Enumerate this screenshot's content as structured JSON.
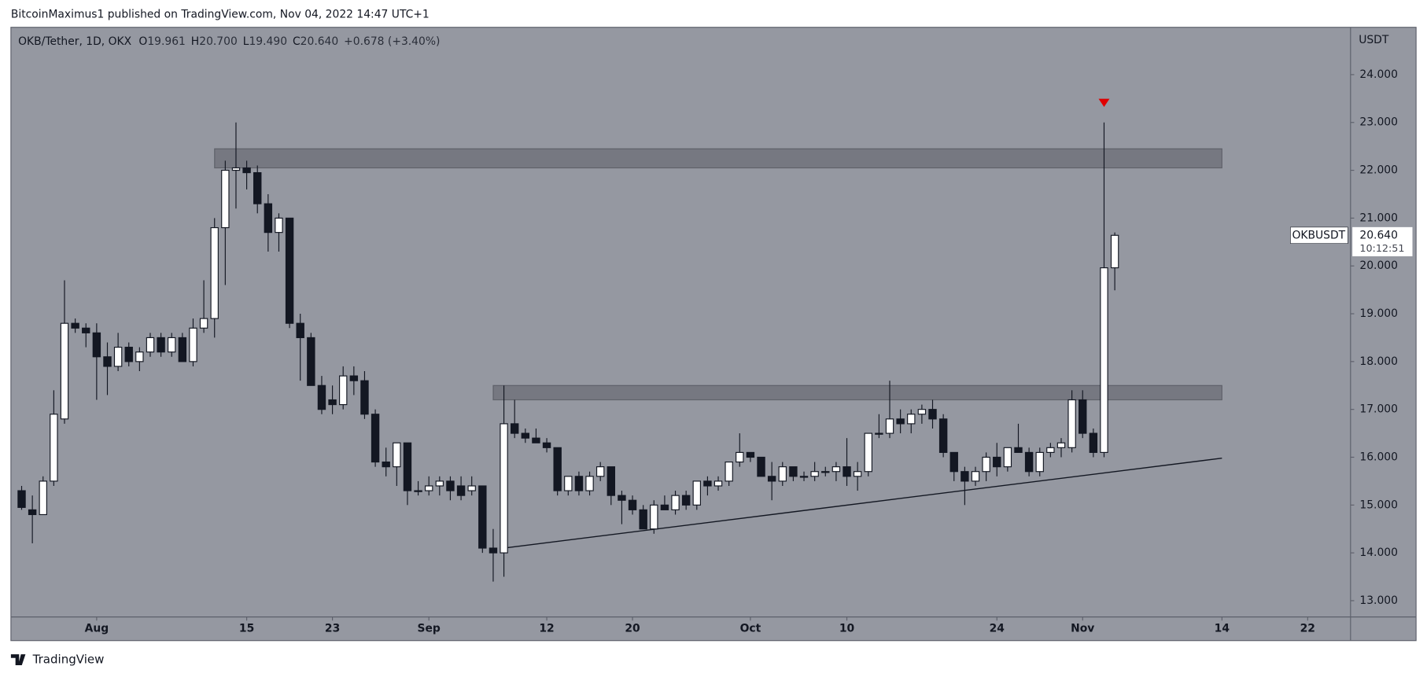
{
  "publisher": "BitcoinMaximus1 published on TradingView.com, Nov 04, 2022 14:47 UTC+1",
  "footer": "TradingView",
  "chart_data": {
    "type": "candlestick",
    "title": "OKB/Tether, 1D, OKX",
    "header_values": [
      {
        "key": "O",
        "text": "19.961"
      },
      {
        "key": "H",
        "text": "20.700"
      },
      {
        "key": "L",
        "text": "19.490"
      },
      {
        "key": "C",
        "text": "20.640"
      }
    ],
    "change": "+0.678 (+3.40%)",
    "y_unit": "USDT",
    "symbol": "OKBUSDT",
    "last_price": {
      "value": 20.64,
      "label": "20.640"
    },
    "countdown": "10:12:51",
    "x": [
      "Jul 25",
      "Jul 26",
      "Jul 27",
      "Jul 28",
      "Jul 29",
      "Jul 30",
      "Jul 31",
      "Aug 1",
      "Aug 2",
      "Aug 3",
      "Aug 4",
      "Aug 5",
      "Aug 6",
      "Aug 7",
      "Aug 8",
      "Aug 9",
      "Aug 10",
      "Aug 11",
      "Aug 12",
      "Aug 13",
      "Aug 14",
      "Aug 15",
      "Aug 16",
      "Aug 17",
      "Aug 18",
      "Aug 19",
      "Aug 20",
      "Aug 21",
      "Aug 22",
      "Aug 23",
      "Aug 24",
      "Aug 25",
      "Aug 26",
      "Aug 27",
      "Aug 28",
      "Aug 29",
      "Aug 30",
      "Aug 31",
      "Sep 1",
      "Sep 2",
      "Sep 3",
      "Sep 4",
      "Sep 5",
      "Sep 6",
      "Sep 7",
      "Sep 8",
      "Sep 9",
      "Sep 10",
      "Sep 11",
      "Sep 12",
      "Sep 13",
      "Sep 14",
      "Sep 15",
      "Sep 16",
      "Sep 17",
      "Sep 18",
      "Sep 19",
      "Sep 20",
      "Sep 21",
      "Sep 22",
      "Sep 23",
      "Sep 24",
      "Sep 25",
      "Sep 26",
      "Sep 27",
      "Sep 28",
      "Sep 29",
      "Sep 30",
      "Oct 1",
      "Oct 2",
      "Oct 3",
      "Oct 4",
      "Oct 5",
      "Oct 6",
      "Oct 7",
      "Oct 8",
      "Oct 9",
      "Oct 10",
      "Oct 11",
      "Oct 12",
      "Oct 13",
      "Oct 14",
      "Oct 15",
      "Oct 16",
      "Oct 17",
      "Oct 18",
      "Oct 19",
      "Oct 20",
      "Oct 21",
      "Oct 22",
      "Oct 23",
      "Oct 24",
      "Oct 25",
      "Oct 26",
      "Oct 27",
      "Oct 28",
      "Oct 29",
      "Oct 30",
      "Oct 31",
      "Nov 1",
      "Nov 2",
      "Nov 3",
      "Nov 4"
    ],
    "open": [
      15.3,
      14.9,
      14.8,
      15.5,
      16.8,
      18.8,
      18.7,
      18.6,
      18.1,
      17.9,
      18.3,
      18.0,
      18.2,
      18.5,
      18.2,
      18.5,
      18.0,
      18.7,
      18.9,
      20.8,
      22.0,
      22.05,
      21.95,
      21.3,
      20.7,
      21.0,
      18.8,
      18.5,
      17.5,
      17.2,
      17.1,
      17.7,
      17.6,
      16.9,
      15.9,
      15.8,
      16.3,
      15.3,
      15.3,
      15.4,
      15.5,
      15.4,
      15.3,
      15.4,
      14.1,
      14.0,
      16.7,
      16.5,
      16.4,
      16.3,
      16.2,
      15.3,
      15.6,
      15.3,
      15.6,
      15.8,
      15.2,
      15.1,
      14.9,
      14.5,
      15.0,
      14.9,
      15.2,
      15.0,
      15.5,
      15.4,
      15.5,
      15.9,
      16.1,
      16.0,
      15.6,
      15.5,
      15.8,
      15.6,
      15.6,
      15.7,
      15.7,
      15.8,
      15.6,
      15.7,
      16.5,
      16.5,
      16.8,
      16.7,
      16.9,
      17.0,
      16.8,
      16.1,
      15.7,
      15.5,
      15.7,
      16.0,
      15.8,
      16.2,
      16.1,
      15.7,
      16.1,
      16.2,
      16.2,
      17.2,
      16.5,
      16.1,
      19.961
    ],
    "high": [
      15.4,
      15.2,
      15.6,
      17.4,
      19.7,
      18.9,
      18.8,
      18.8,
      18.4,
      18.6,
      18.4,
      18.3,
      18.6,
      18.6,
      18.6,
      18.6,
      18.9,
      19.7,
      21.0,
      22.2,
      23.0,
      22.2,
      22.1,
      21.5,
      21.1,
      21.0,
      19.0,
      18.6,
      17.7,
      17.5,
      17.9,
      17.9,
      17.8,
      17.0,
      16.2,
      16.3,
      16.3,
      15.5,
      15.6,
      15.6,
      15.6,
      15.6,
      15.6,
      15.4,
      14.5,
      17.5,
      17.2,
      16.6,
      16.6,
      16.4,
      16.2,
      15.6,
      15.7,
      15.7,
      15.9,
      15.8,
      15.3,
      15.2,
      15.0,
      15.1,
      15.2,
      15.3,
      15.3,
      15.5,
      15.6,
      15.6,
      15.9,
      16.5,
      16.1,
      16.0,
      15.9,
      15.9,
      15.8,
      15.7,
      15.9,
      15.8,
      15.9,
      16.4,
      15.9,
      16.5,
      16.9,
      17.6,
      17.0,
      17.0,
      17.1,
      17.2,
      16.9,
      16.1,
      15.8,
      15.8,
      16.1,
      16.3,
      16.2,
      16.7,
      16.2,
      16.2,
      16.3,
      16.4,
      17.4,
      17.4,
      16.6,
      23.0,
      20.7
    ],
    "low": [
      14.9,
      14.2,
      14.8,
      15.4,
      16.7,
      18.6,
      18.3,
      17.2,
      17.3,
      17.8,
      17.9,
      17.8,
      18.1,
      18.1,
      18.1,
      18.0,
      17.9,
      18.6,
      18.5,
      19.6,
      21.2,
      21.6,
      21.1,
      20.3,
      20.3,
      18.7,
      17.6,
      17.5,
      16.9,
      16.9,
      17.0,
      17.3,
      16.8,
      15.8,
      15.6,
      15.4,
      15.0,
      15.2,
      15.2,
      15.2,
      15.1,
      15.1,
      15.2,
      14.0,
      13.4,
      13.5,
      16.4,
      16.3,
      16.3,
      16.1,
      15.2,
      15.2,
      15.2,
      15.2,
      15.5,
      15.0,
      14.6,
      14.8,
      14.5,
      14.4,
      14.9,
      14.8,
      14.9,
      14.9,
      15.2,
      15.3,
      15.4,
      15.8,
      15.9,
      15.6,
      15.1,
      15.4,
      15.5,
      15.5,
      15.5,
      15.6,
      15.5,
      15.4,
      15.3,
      15.6,
      16.4,
      16.4,
      16.5,
      16.5,
      16.7,
      16.6,
      16.0,
      15.5,
      15.0,
      15.4,
      15.5,
      15.6,
      15.7,
      16.1,
      15.6,
      15.6,
      16.0,
      16.0,
      16.1,
      16.4,
      16.0,
      16.0,
      19.49
    ],
    "close": [
      14.95,
      14.8,
      15.5,
      16.9,
      18.8,
      18.7,
      18.6,
      18.1,
      17.9,
      18.3,
      18.0,
      18.2,
      18.5,
      18.2,
      18.5,
      18.0,
      18.7,
      18.9,
      20.8,
      22.0,
      22.05,
      21.95,
      21.3,
      20.7,
      21.0,
      18.8,
      18.5,
      17.5,
      17.0,
      17.1,
      17.7,
      17.6,
      16.9,
      15.9,
      15.8,
      16.3,
      15.3,
      15.3,
      15.4,
      15.5,
      15.3,
      15.2,
      15.4,
      14.1,
      14.0,
      16.7,
      16.5,
      16.4,
      16.3,
      16.2,
      15.3,
      15.6,
      15.3,
      15.6,
      15.8,
      15.2,
      15.1,
      14.9,
      14.5,
      15.0,
      14.9,
      15.2,
      15.0,
      15.5,
      15.4,
      15.5,
      15.9,
      16.1,
      16.0,
      15.6,
      15.5,
      15.8,
      15.6,
      15.6,
      15.7,
      15.7,
      15.8,
      15.6,
      15.7,
      16.5,
      16.5,
      16.8,
      16.7,
      16.9,
      17.0,
      16.8,
      16.1,
      15.7,
      15.5,
      15.7,
      16.0,
      15.8,
      16.2,
      16.1,
      15.7,
      16.1,
      16.2,
      16.3,
      17.2,
      16.5,
      16.1,
      19.961,
      20.64
    ],
    "up_color": "#ffffff",
    "down_color": "#131722",
    "xlim": [
      "Jul 24",
      "Nov 26"
    ],
    "xticks": [
      {
        "value": "Aug 1",
        "label": "Aug"
      },
      {
        "value": "Aug 15",
        "label": "15"
      },
      {
        "value": "Aug 23",
        "label": "23"
      },
      {
        "value": "Sep 1",
        "label": "Sep"
      },
      {
        "value": "Sep 12",
        "label": "12"
      },
      {
        "value": "Sep 20",
        "label": "20"
      },
      {
        "value": "Oct 1",
        "label": "Oct"
      },
      {
        "value": "Oct 10",
        "label": "10"
      },
      {
        "value": "Oct 24",
        "label": "24"
      },
      {
        "value": "Nov 1",
        "label": "Nov"
      },
      {
        "value": "Nov 14",
        "label": "14"
      },
      {
        "value": "Nov 22",
        "label": "22"
      }
    ],
    "ylim": [
      12.66,
      24.99
    ],
    "yticks": [
      {
        "value": 13,
        "label": "13.000"
      },
      {
        "value": 14,
        "label": "14.000"
      },
      {
        "value": 15,
        "label": "15.000"
      },
      {
        "value": 16,
        "label": "16.000"
      },
      {
        "value": 17,
        "label": "17.000"
      },
      {
        "value": 18,
        "label": "18.000"
      },
      {
        "value": 19,
        "label": "19.000"
      },
      {
        "value": 20,
        "label": "20.000"
      },
      {
        "value": 21,
        "label": "21.000"
      },
      {
        "value": 22,
        "label": "22.000"
      },
      {
        "value": 23,
        "label": "23.000"
      },
      {
        "value": 24,
        "label": "24.000"
      }
    ],
    "zones": [
      {
        "x": [
          "Aug 12",
          "Nov 14"
        ],
        "y": [
          22.05,
          22.45
        ]
      },
      {
        "x": [
          "Sep 7",
          "Nov 14"
        ],
        "y": [
          17.2,
          17.5
        ]
      }
    ],
    "trendline": {
      "x": [
        "Sep 8",
        "Nov 14"
      ],
      "y": [
        14.1,
        15.98
      ]
    },
    "marker": {
      "x": "Nov 3",
      "y": 23.4,
      "color": "#e00000"
    }
  }
}
